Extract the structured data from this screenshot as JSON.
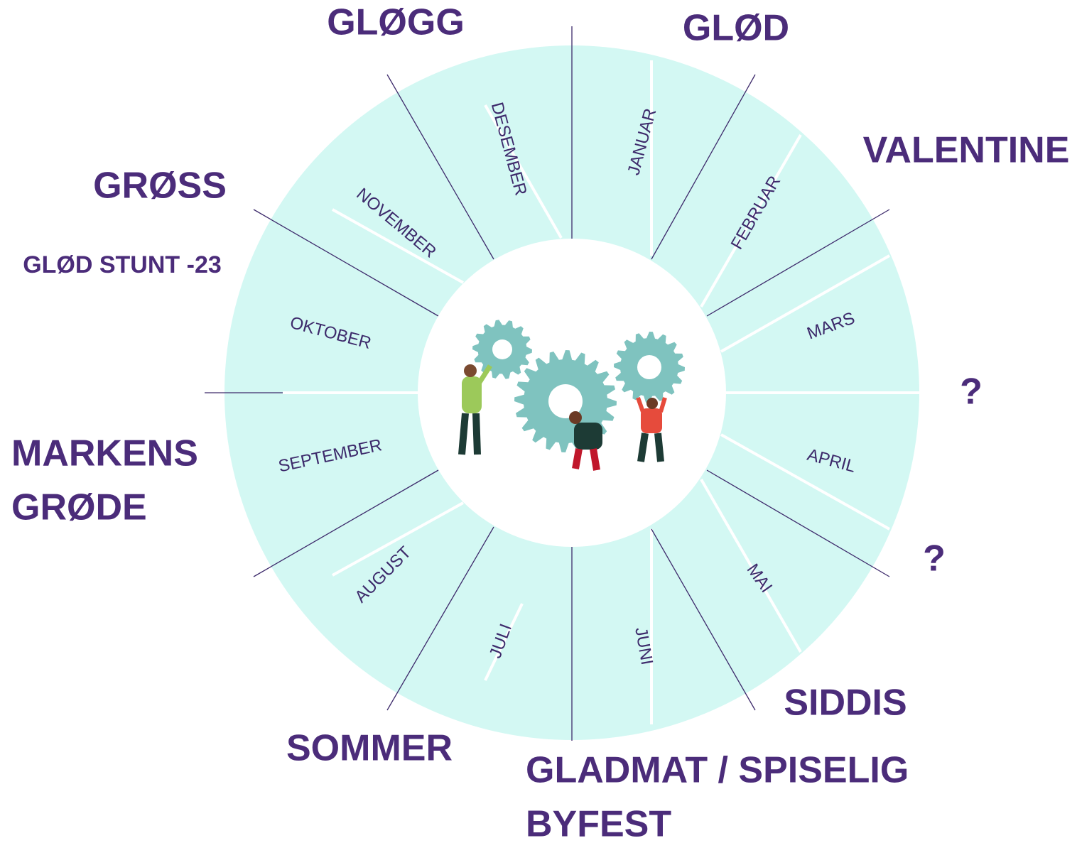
{
  "months": [
    "JANUAR",
    "FEBRUAR",
    "MARS",
    "APRIL",
    "MAI",
    "JUNI",
    "JULI",
    "AUGUST",
    "SEPTEMBER",
    "OKTOBER",
    "NOVEMBER",
    "DESEMBER"
  ],
  "events": [
    {
      "lines": [
        "GLØGG"
      ]
    },
    {
      "lines": [
        "GLØD"
      ]
    },
    {
      "lines": [
        "VALENTINE"
      ]
    },
    {
      "lines": [
        "?"
      ]
    },
    {
      "lines": [
        "?"
      ]
    },
    {
      "lines": [
        "SIDDIS"
      ]
    },
    {
      "lines": [
        "GLADMAT / SPISELIG",
        "BYFEST"
      ]
    },
    {
      "lines": [
        "SOMMER"
      ]
    },
    {
      "lines": [
        "MARKENS",
        "GRØDE"
      ]
    },
    {
      "lines": [
        "GRØSS"
      ]
    },
    {
      "lines": [
        "GLØD STUNT -23"
      ]
    }
  ]
}
